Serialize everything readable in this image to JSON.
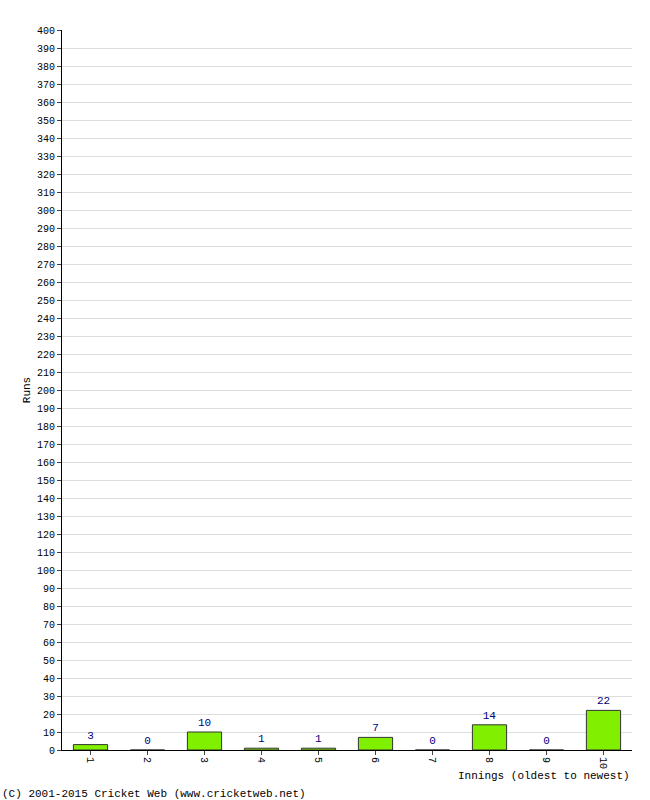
{
  "chart_data": {
    "type": "bar",
    "categories": [
      "1",
      "2",
      "3",
      "4",
      "5",
      "6",
      "7",
      "8",
      "9",
      "10"
    ],
    "values": [
      3,
      0,
      10,
      1,
      1,
      7,
      0,
      14,
      0,
      22
    ],
    "color": "#80f000",
    "x_label": "Innings (oldest to newest)",
    "y_label": "Runs",
    "annotations": [
      "(C) 2001-2015 Cricket Web (www.cricketweb.net)"
    ],
    "ylim": [
      0,
      400
    ],
    "yticks": [
      0,
      10,
      20,
      30,
      40,
      50,
      60,
      70,
      80,
      90,
      100,
      110,
      120,
      130,
      140,
      150,
      160,
      170,
      180,
      190,
      200,
      210,
      220,
      230,
      240,
      250,
      260,
      270,
      280,
      290,
      300,
      310,
      320,
      330,
      340,
      350,
      360,
      370,
      380,
      390,
      400
    ],
    "grid": true,
    "data_labels": true
  }
}
